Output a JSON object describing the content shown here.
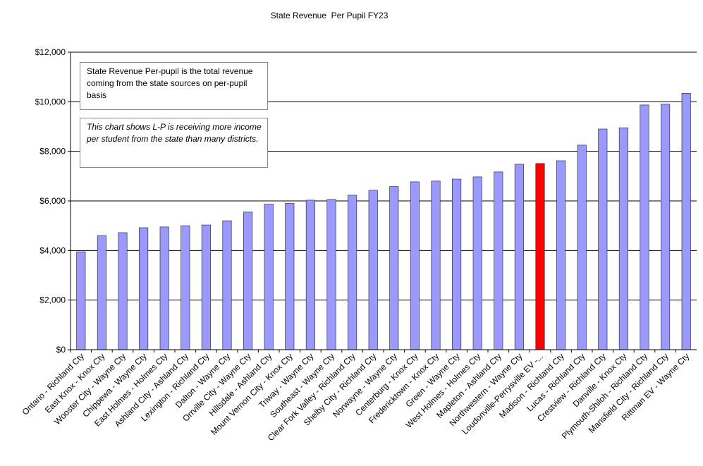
{
  "chart_data": {
    "type": "bar",
    "title": "State Revenue  Per Pupil FY23",
    "categories": [
      "Ontario - Richland Cty",
      "East Knox - Knox Cty",
      "Wooster City - Wayne Cty",
      "Chippewa - Wayne Cty",
      "East Holmes - Holmes Cty",
      "Ashland City - Ashland Cty",
      "Lexington - Richland Cty",
      "Dalton - Wayne Cty",
      "Orrville City - Wayne Cty",
      "Hillsdale - Ashland Cty",
      "Mount Vernon City - Knox Cty",
      "Triway - Wayne Cty",
      "Southeast - Wayne Cty",
      "Clear Fork Valley - Richland Cty",
      "Shelby City - Richland Cty",
      "Norwayne - Wayne Cty",
      "Centerburg - Knox Cty",
      "Fredericktown - Knox Cty",
      "Green - Wayne Cty",
      "West Holmes - Holmes Cty",
      "Mapleton - Ashland Cty",
      "Northwestern - Wayne Cty",
      "Loudonville-Perrysville EV -...",
      "Madison - Richland Cty",
      "Lucas - Richland Cty",
      "Crestview - Richland Cty",
      "Danville - Knox Cty",
      "Plymouth-Shiloh - Richland Cty",
      "Mansfield City - Richland Cty",
      "Rittman EV - Wayne Cty"
    ],
    "values": [
      3950,
      4600,
      4720,
      4920,
      4950,
      5000,
      5030,
      5200,
      5550,
      5870,
      5900,
      6030,
      6060,
      6230,
      6430,
      6580,
      6770,
      6800,
      6880,
      6970,
      7170,
      7480,
      7510,
      7620,
      8250,
      8900,
      8950,
      9870,
      9900,
      10340
    ],
    "colors": [
      "#9999ff",
      "#9999ff",
      "#9999ff",
      "#9999ff",
      "#9999ff",
      "#9999ff",
      "#9999ff",
      "#9999ff",
      "#9999ff",
      "#9999ff",
      "#9999ff",
      "#9999ff",
      "#9999ff",
      "#9999ff",
      "#9999ff",
      "#9999ff",
      "#9999ff",
      "#9999ff",
      "#9999ff",
      "#9999ff",
      "#9999ff",
      "#9999ff",
      "#ff0000",
      "#9999ff",
      "#9999ff",
      "#9999ff",
      "#9999ff",
      "#9999ff",
      "#9999ff",
      "#9999ff"
    ],
    "ylim": [
      0,
      12000
    ],
    "yticks": [
      {
        "value": 0,
        "label": "$0"
      },
      {
        "value": 2000,
        "label": "$2,000"
      },
      {
        "value": 4000,
        "label": "$4,000"
      },
      {
        "value": 6000,
        "label": "$6,000"
      },
      {
        "value": 8000,
        "label": "$8,000"
      },
      {
        "value": 10000,
        "label": "$10,000"
      },
      {
        "value": 12000,
        "label": "$12,000"
      }
    ],
    "grid": true,
    "annotations": [
      "State Revenue Per-pupil is the total revenue coming from the state sources on per-pupil basis",
      "This chart shows L-P is receiving more income per student from the state than many districts."
    ]
  }
}
